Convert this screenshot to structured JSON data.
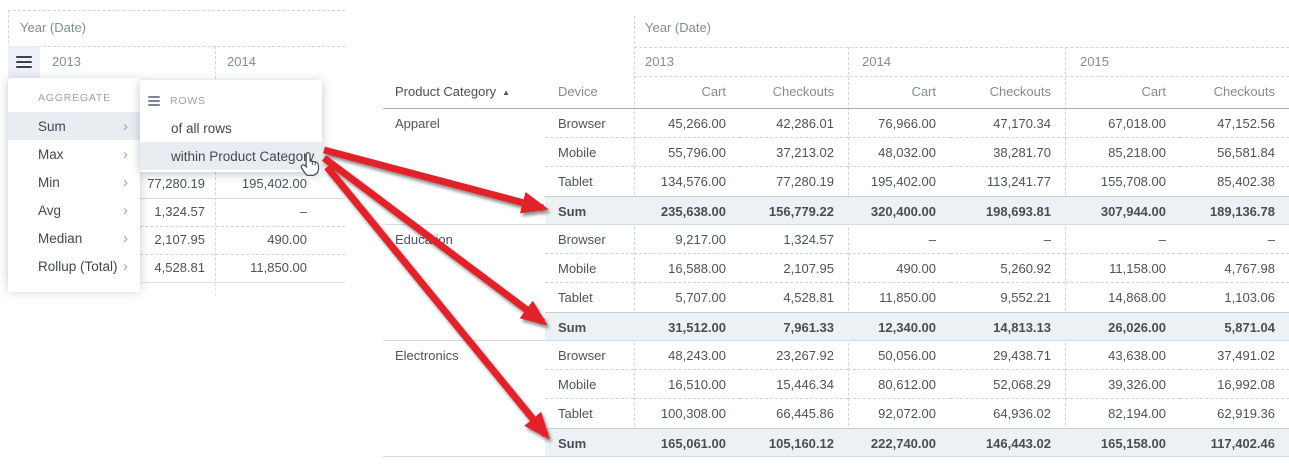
{
  "colors": {
    "accent_red": "#e2232a",
    "sum_row_bg": "#eef1f4",
    "menu_highlight_bg": "#e9edf1",
    "dashed_border": "#ccd5dd",
    "text_dark": "#4c535a",
    "text_gray": "#828d96"
  },
  "left_panel": {
    "year_header": "Year (Date)",
    "years": [
      "2013",
      "2014"
    ],
    "menu": {
      "section_label": "AGGREGATE",
      "items": [
        {
          "label": "Sum",
          "selected": true
        },
        {
          "label": "Max",
          "selected": false
        },
        {
          "label": "Min",
          "selected": false
        },
        {
          "label": "Avg",
          "selected": false
        },
        {
          "label": "Median",
          "selected": false
        },
        {
          "label": "Rollup (Total)",
          "selected": false
        }
      ]
    },
    "submenu": {
      "section_label": "ROWS",
      "items": [
        {
          "label": "of all rows",
          "highlighted": false
        },
        {
          "label": "within Product Category",
          "highlighted": true
        }
      ]
    },
    "background_rows": [
      {
        "c2013": "77,280.19",
        "c2014": "195,402.00"
      },
      {
        "c2013": "1,324.57",
        "c2014": "–"
      },
      {
        "c2013": "2,107.95",
        "c2014": "490.00"
      },
      {
        "c2013": "4,528.81",
        "c2014": "11,850.00"
      }
    ]
  },
  "right_panel": {
    "year_header": "Year (Date)",
    "years": [
      "2013",
      "2014",
      "2015"
    ],
    "columns": {
      "category": "Product Category",
      "sort_indicator": "▲",
      "device": "Device",
      "cart": "Cart",
      "checkouts": "Checkouts"
    },
    "groups": [
      {
        "category": "Apparel",
        "rows": [
          {
            "device": "Browser",
            "values": [
              "45,266.00",
              "42,286.01",
              "76,966.00",
              "47,170.34",
              "67,018.00",
              "47,152.56"
            ]
          },
          {
            "device": "Mobile",
            "values": [
              "55,796.00",
              "37,213.02",
              "48,032.00",
              "38,281.70",
              "85,218.00",
              "56,581.84"
            ]
          },
          {
            "device": "Tablet",
            "values": [
              "134,576.00",
              "77,280.19",
              "195,402.00",
              "113,241.77",
              "155,708.00",
              "85,402.38"
            ]
          },
          {
            "device": "Sum",
            "values": [
              "235,638.00",
              "156,779.22",
              "320,400.00",
              "198,693.81",
              "307,944.00",
              "189,136.78"
            ]
          }
        ]
      },
      {
        "category": "Education",
        "rows": [
          {
            "device": "Browser",
            "values": [
              "9,217.00",
              "1,324.57",
              "–",
              "–",
              "–",
              "–"
            ]
          },
          {
            "device": "Mobile",
            "values": [
              "16,588.00",
              "2,107.95",
              "490.00",
              "5,260.92",
              "11,158.00",
              "4,767.98"
            ]
          },
          {
            "device": "Tablet",
            "values": [
              "5,707.00",
              "4,528.81",
              "11,850.00",
              "9,552.21",
              "14,868.00",
              "1,103.06"
            ]
          },
          {
            "device": "Sum",
            "values": [
              "31,512.00",
              "7,961.33",
              "12,340.00",
              "14,813.13",
              "26,026.00",
              "5,871.04"
            ]
          }
        ]
      },
      {
        "category": "Electronics",
        "rows": [
          {
            "device": "Browser",
            "values": [
              "48,243.00",
              "23,267.92",
              "50,056.00",
              "29,438.71",
              "43,638.00",
              "37,491.02"
            ]
          },
          {
            "device": "Mobile",
            "values": [
              "16,510.00",
              "15,446.34",
              "80,612.00",
              "52,068.29",
              "39,326.00",
              "16,992.08"
            ]
          },
          {
            "device": "Tablet",
            "values": [
              "100,308.00",
              "66,445.86",
              "92,072.00",
              "64,936.02",
              "82,194.00",
              "62,919.36"
            ]
          },
          {
            "device": "Sum",
            "values": [
              "165,061.00",
              "105,160.12",
              "222,740.00",
              "146,443.02",
              "165,158.00",
              "117,402.46"
            ]
          }
        ]
      }
    ]
  },
  "annotation": {
    "arrow_source": "within Product Category",
    "arrow_targets": [
      "Sum",
      "Sum",
      "Sum"
    ],
    "arrow_color": "#e2232a"
  }
}
